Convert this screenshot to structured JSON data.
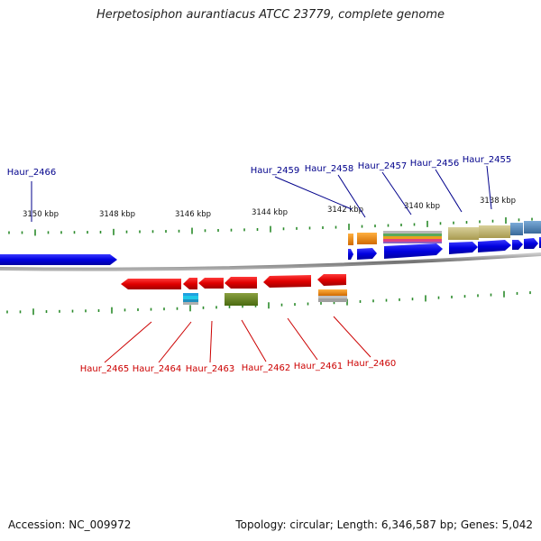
{
  "title": "Herpetosiphon aurantiacus ATCC 23779, complete genome",
  "footer": {
    "accession": "Accession: NC_009972",
    "summary": "Topology: circular; Length: 6,346,587 bp; Genes: 5,042"
  },
  "colors": {
    "forward_gene": "#0000ee",
    "reverse_gene": "#ee0000",
    "forward_label": "#00008b",
    "reverse_label": "#cc0000",
    "tick": "#2a8a2a",
    "backbone": "#808080"
  },
  "ticks": [
    {
      "label": "3150 kbp"
    },
    {
      "label": "3148 kbp"
    },
    {
      "label": "3146 kbp"
    },
    {
      "label": "3144 kbp"
    },
    {
      "label": "3142 kbp"
    },
    {
      "label": "3140 kbp"
    },
    {
      "label": "3138 kbp"
    }
  ],
  "forward_genes": [
    {
      "name": "Haur_2466"
    },
    {
      "name": "Haur_2459"
    },
    {
      "name": "Haur_2458"
    },
    {
      "name": "Haur_2457"
    },
    {
      "name": "Haur_2456"
    },
    {
      "name": "Haur_2455"
    }
  ],
  "reverse_genes": [
    {
      "name": "Haur_2465"
    },
    {
      "name": "Haur_2464"
    },
    {
      "name": "Haur_2463"
    },
    {
      "name": "Haur_2462"
    },
    {
      "name": "Haur_2461"
    },
    {
      "name": "Haur_2460"
    }
  ]
}
